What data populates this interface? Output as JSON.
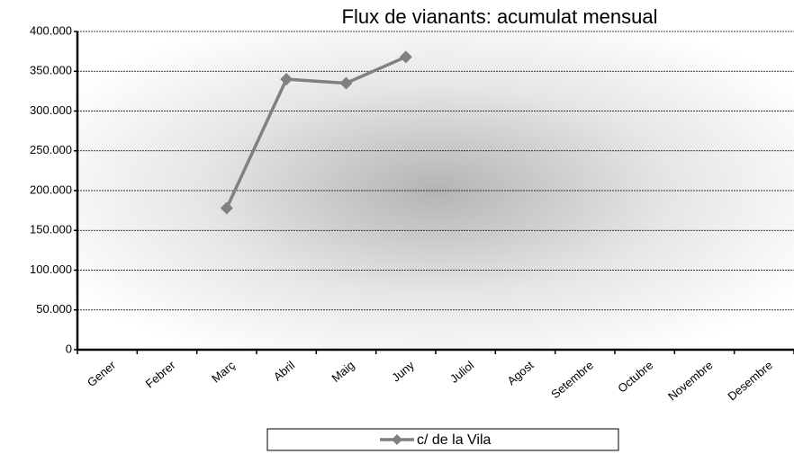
{
  "chart_data": {
    "type": "line",
    "title": "Flux de vianants: acumulat mensual",
    "categories": [
      "Gener",
      "Febrer",
      "Març",
      "Abril",
      "Maig",
      "Juny",
      "Juliol",
      "Agost",
      "Setembre",
      "Octubre",
      "Novembre",
      "Desembre"
    ],
    "series": [
      {
        "name": "c/ de la Vila",
        "color": "#808080",
        "values": [
          null,
          null,
          178000,
          340000,
          335000,
          368000,
          null,
          null,
          null,
          null,
          null,
          null
        ]
      }
    ],
    "ylim": [
      0,
      400000
    ],
    "yticks": [
      0,
      {
        "value": 50000,
        "label": "50.000"
      },
      {
        "value": 100000,
        "label": "100.000"
      },
      {
        "value": 150000,
        "label": "150.000"
      },
      {
        "value": 200000,
        "label": "200.000"
      },
      {
        "value": 250000,
        "label": "250.000"
      },
      {
        "value": 300000,
        "label": "300.000"
      },
      {
        "value": 350000,
        "label": "350.000"
      },
      {
        "value": 400000,
        "label": "400.000"
      }
    ],
    "grid": true,
    "legend": "bottom"
  }
}
